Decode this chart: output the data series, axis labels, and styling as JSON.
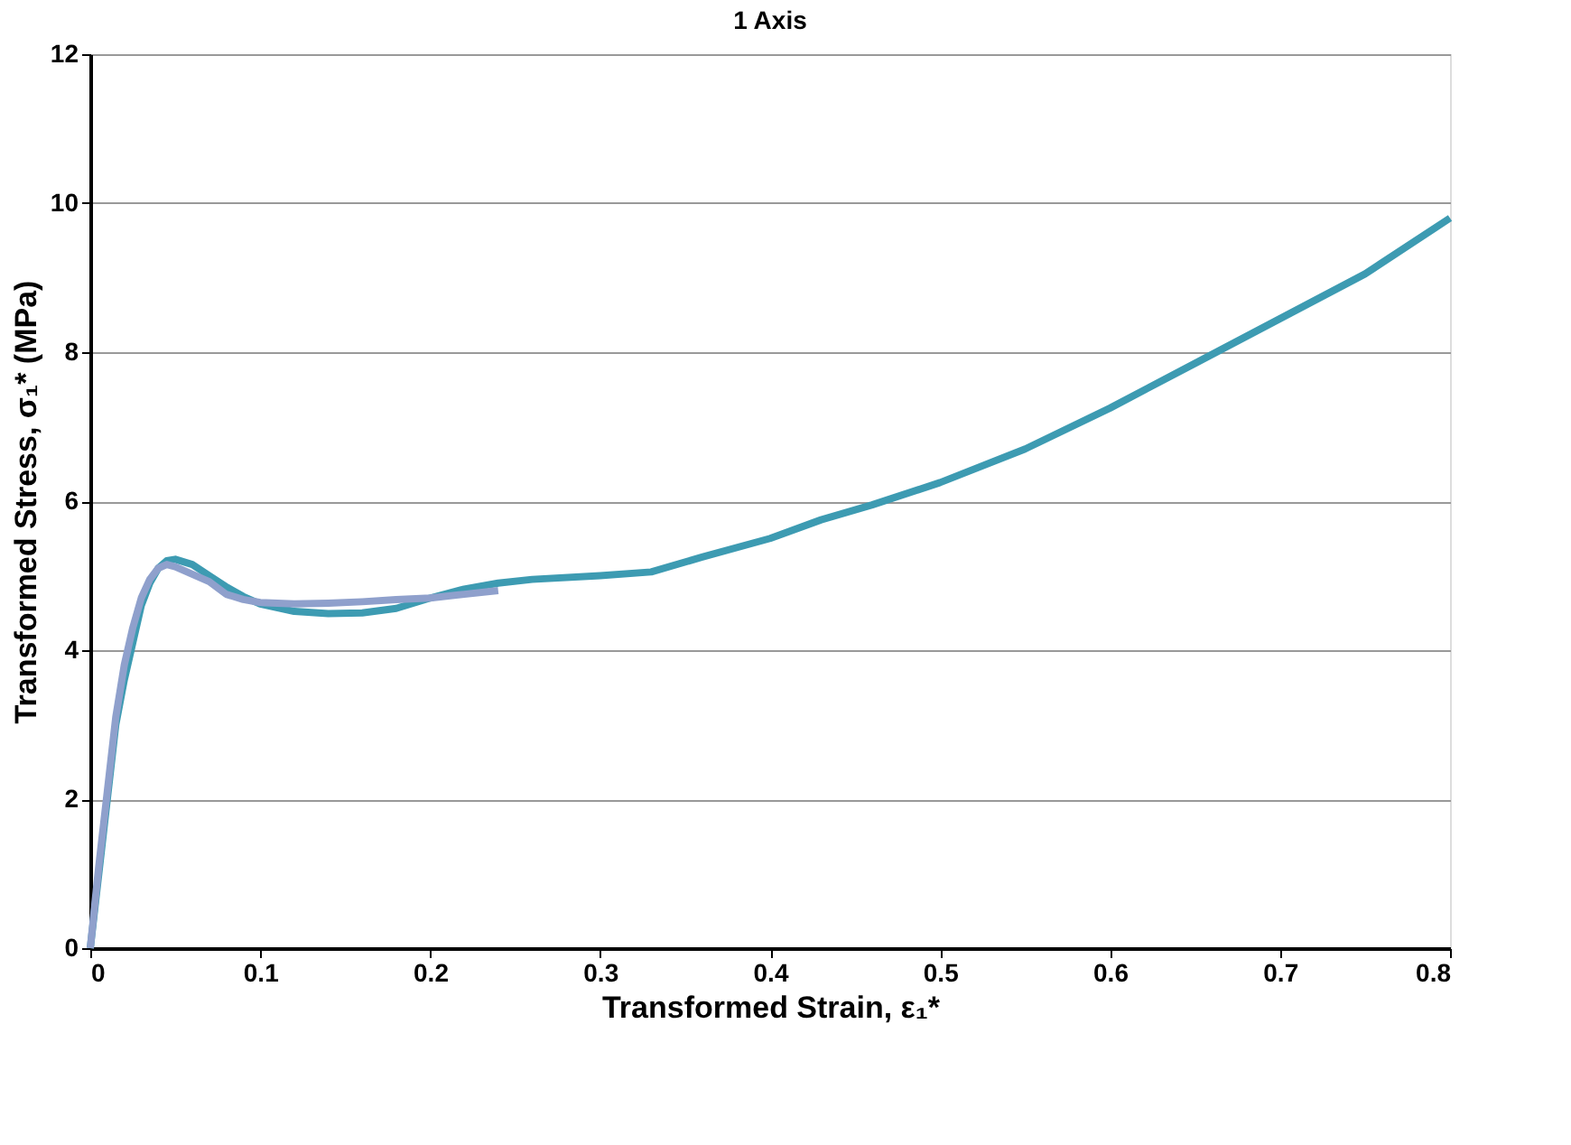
{
  "chart_data": {
    "type": "line",
    "title": "1 Axis",
    "xlabel": "Transformed Strain, ε₁*",
    "ylabel": "Transformed Stress, σ₁* (MPa)",
    "xlim": [
      0,
      0.8
    ],
    "xticks": [
      0,
      0.1,
      0.2,
      0.3,
      0.4,
      0.5,
      0.6,
      0.7,
      0.8
    ],
    "ylim": [
      0,
      12
    ],
    "yticks": [
      0,
      2,
      4,
      6,
      8,
      10,
      12
    ],
    "grid": "y",
    "legend": false,
    "marker": "none",
    "line_style": "solid",
    "series": [
      {
        "color": "#3d9bb2",
        "x": [
          0,
          0.005,
          0.01,
          0.015,
          0.02,
          0.025,
          0.03,
          0.035,
          0.04,
          0.045,
          0.05,
          0.06,
          0.07,
          0.08,
          0.09,
          0.1,
          0.12,
          0.14,
          0.16,
          0.18,
          0.2,
          0.22,
          0.24,
          0.26,
          0.3,
          0.33,
          0.36,
          0.4,
          0.43,
          0.46,
          0.5,
          0.55,
          0.6,
          0.65,
          0.7,
          0.75,
          0.8
        ],
        "values": [
          0,
          1.0,
          2.0,
          3.0,
          3.6,
          4.1,
          4.6,
          4.9,
          5.1,
          5.2,
          5.22,
          5.15,
          5.0,
          4.85,
          4.72,
          4.62,
          4.52,
          4.49,
          4.5,
          4.56,
          4.7,
          4.82,
          4.9,
          4.95,
          5.0,
          5.05,
          5.25,
          5.5,
          5.75,
          5.95,
          6.25,
          6.7,
          7.25,
          7.85,
          8.45,
          9.05,
          9.8
        ]
      },
      {
        "color": "#8fa0cc",
        "x": [
          0,
          0.005,
          0.01,
          0.015,
          0.02,
          0.025,
          0.03,
          0.035,
          0.04,
          0.045,
          0.05,
          0.06,
          0.07,
          0.08,
          0.09,
          0.1,
          0.12,
          0.14,
          0.16,
          0.18,
          0.2,
          0.22,
          0.24
        ],
        "values": [
          0,
          1.1,
          2.1,
          3.1,
          3.8,
          4.3,
          4.7,
          4.95,
          5.1,
          5.15,
          5.12,
          5.02,
          4.92,
          4.75,
          4.68,
          4.64,
          4.62,
          4.63,
          4.65,
          4.68,
          4.7,
          4.75,
          4.8
        ]
      }
    ]
  }
}
